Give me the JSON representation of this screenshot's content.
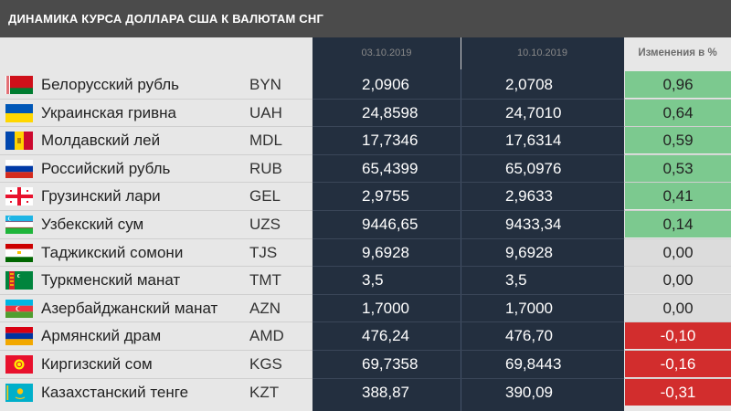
{
  "title": "ДИНАМИКА КУРСА ДОЛЛАРА США К ВАЛЮТАМ СНГ",
  "header": {
    "date1": "03.10.2019",
    "date2": "10.10.2019",
    "change": "Изменения в %"
  },
  "colors": {
    "positive": "#7cc98f",
    "zero": "#dcdcdc",
    "negative": "#d22d2d",
    "dark": "#232f3f"
  },
  "chart_data": {
    "type": "table",
    "title": "ДИНАМИКА КУРСА ДОЛЛАРА США К ВАЛЮТАМ СНГ",
    "columns": [
      "",
      "",
      "03.10.2019",
      "10.10.2019",
      "Изменения в %"
    ],
    "rows": [
      {
        "flag": "belarus-flag-icon",
        "name": "Белорусский рубль",
        "code": "BYN",
        "v1": "2,0906",
        "v2": "2,0708",
        "change": "0,96",
        "sign": "pos"
      },
      {
        "flag": "ukraine-flag-icon",
        "name": "Украинская гривна",
        "code": "UAH",
        "v1": "24,8598",
        "v2": "24,7010",
        "change": "0,64",
        "sign": "pos"
      },
      {
        "flag": "moldova-flag-icon",
        "name": "Молдавский лей",
        "code": "MDL",
        "v1": "17,7346",
        "v2": "17,6314",
        "change": "0,59",
        "sign": "pos"
      },
      {
        "flag": "russia-flag-icon",
        "name": "Российский рубль",
        "code": "RUB",
        "v1": "65,4399",
        "v2": "65,0976",
        "change": "0,53",
        "sign": "pos"
      },
      {
        "flag": "georgia-flag-icon",
        "name": "Грузинский лари",
        "code": "GEL",
        "v1": "2,9755",
        "v2": "2,9633",
        "change": "0,41",
        "sign": "pos"
      },
      {
        "flag": "uzbekistan-flag-icon",
        "name": "Узбекский сум",
        "code": "UZS",
        "v1": "9446,65",
        "v2": "9433,34",
        "change": "0,14",
        "sign": "pos"
      },
      {
        "flag": "tajikistan-flag-icon",
        "name": "Таджикский сомони",
        "code": "TJS",
        "v1": "9,6928",
        "v2": "9,6928",
        "change": "0,00",
        "sign": "zero"
      },
      {
        "flag": "turkmenistan-flag-icon",
        "name": "Туркменский манат",
        "code": "TMT",
        "v1": "3,5",
        "v2": "3,5",
        "change": "0,00",
        "sign": "zero"
      },
      {
        "flag": "azerbaijan-flag-icon",
        "name": "Азербайджанский манат",
        "code": "AZN",
        "v1": "1,7000",
        "v2": "1,7000",
        "change": "0,00",
        "sign": "zero"
      },
      {
        "flag": "armenia-flag-icon",
        "name": "Армянский драм",
        "code": "AMD",
        "v1": "476,24",
        "v2": "476,70",
        "change": "-0,10",
        "sign": "neg"
      },
      {
        "flag": "kyrgyzstan-flag-icon",
        "name": "Киргизский сом",
        "code": "KGS",
        "v1": "69,7358",
        "v2": "69,8443",
        "change": "-0,16",
        "sign": "neg"
      },
      {
        "flag": "kazakhstan-flag-icon",
        "name": "Казахстанский тенге",
        "code": "KZT",
        "v1": "388,87",
        "v2": "390,09",
        "change": "-0,31",
        "sign": "neg"
      }
    ]
  }
}
